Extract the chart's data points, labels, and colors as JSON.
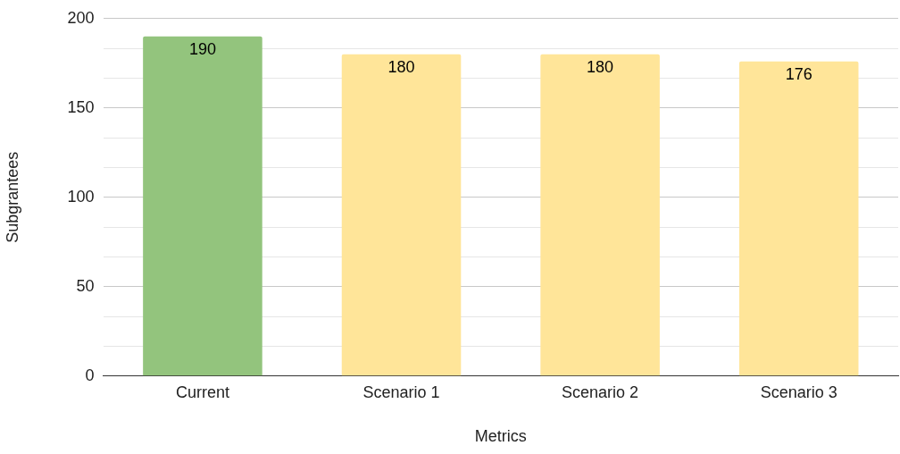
{
  "chart_data": {
    "type": "bar",
    "xlabel": "Metrics",
    "ylabel": "Subgrantees",
    "categories": [
      "Current",
      "Scenario 1",
      "Scenario 2",
      "Scenario 3"
    ],
    "values": [
      190,
      180,
      180,
      176
    ],
    "colors": [
      "#93c47d",
      "#ffe599",
      "#ffe599",
      "#ffe599"
    ],
    "ylim": [
      0,
      200
    ],
    "yticks": [
      0,
      {
        "value": 16.67,
        "label": null
      },
      {
        "value": 33.33,
        "label": null
      },
      50,
      {
        "value": 66.67,
        "label": null
      },
      {
        "value": 83.33,
        "label": null
      },
      100,
      {
        "value": 116.67,
        "label": null
      },
      {
        "value": 133.33,
        "label": null
      },
      150,
      {
        "value": 166.67,
        "label": null
      },
      {
        "value": 183.33,
        "label": null
      },
      200
    ],
    "grid": "y",
    "legend": false,
    "data_labels": true
  }
}
